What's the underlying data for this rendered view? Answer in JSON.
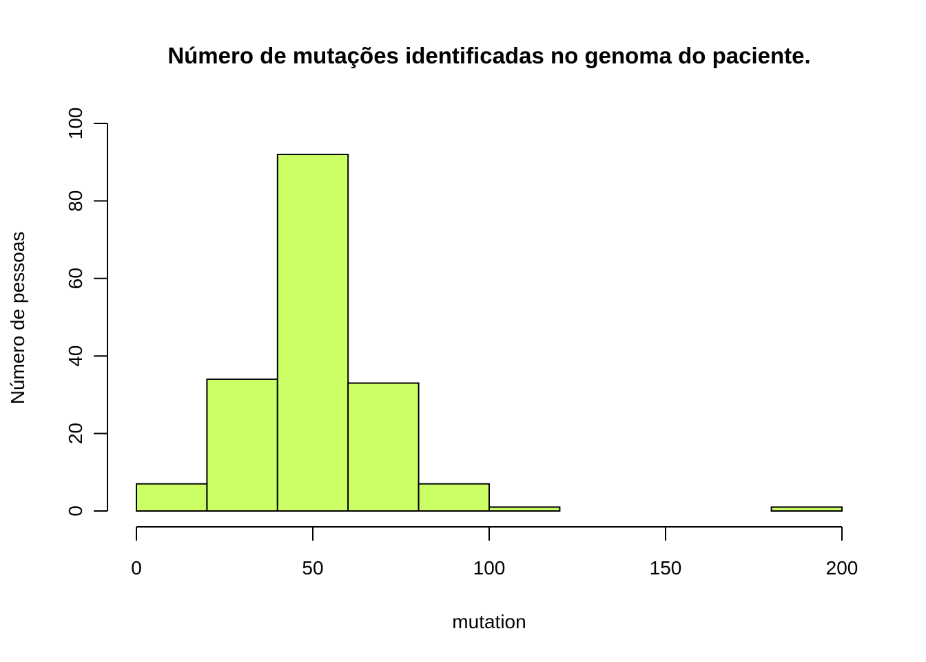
{
  "chart_data": {
    "type": "bar",
    "subtype": "histogram",
    "title": "Número de mutações identificadas no genoma do paciente.",
    "xlabel": "mutation",
    "ylabel": "Número de pessoas",
    "bins": [
      {
        "start": 0,
        "end": 20,
        "count": 7
      },
      {
        "start": 20,
        "end": 40,
        "count": 34
      },
      {
        "start": 40,
        "end": 60,
        "count": 92
      },
      {
        "start": 60,
        "end": 80,
        "count": 33
      },
      {
        "start": 80,
        "end": 100,
        "count": 7
      },
      {
        "start": 100,
        "end": 120,
        "count": 1
      },
      {
        "start": 120,
        "end": 140,
        "count": 0
      },
      {
        "start": 140,
        "end": 160,
        "count": 0
      },
      {
        "start": 160,
        "end": 180,
        "count": 0
      },
      {
        "start": 180,
        "end": 200,
        "count": 1
      }
    ],
    "xlim": [
      0,
      200
    ],
    "ylim": [
      0,
      100
    ],
    "xticks": [
      0,
      50,
      100,
      150,
      200
    ],
    "yticks": [
      0,
      20,
      40,
      60,
      80,
      100
    ],
    "bar_color": "#CCFF66",
    "border_color": "#000000",
    "grid": false
  }
}
